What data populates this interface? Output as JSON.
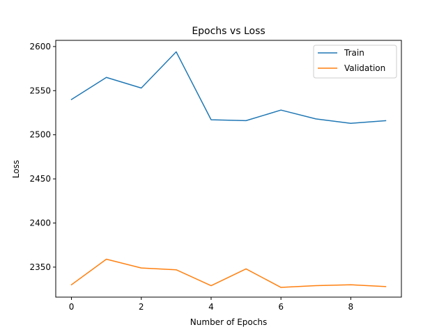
{
  "chart_data": {
    "type": "line",
    "title": "Epochs vs Loss",
    "xlabel": "Number of Epochs",
    "ylabel": "Loss",
    "xlim": [
      -0.45,
      9.45
    ],
    "ylim": [
      2316,
      2607
    ],
    "xticks": [
      0,
      2,
      4,
      6,
      8
    ],
    "yticks": [
      2350,
      2400,
      2450,
      2500,
      2550,
      2600
    ],
    "x": [
      0,
      1,
      2,
      3,
      4,
      5,
      6,
      7,
      8,
      9
    ],
    "series": [
      {
        "name": "Train",
        "color": "#1f77b4",
        "values": [
          2540,
          2565,
          2553,
          2594,
          2517,
          2516,
          2528,
          2518,
          2513,
          2516
        ]
      },
      {
        "name": "Validation",
        "color": "#ff7f0e",
        "values": [
          2330,
          2359,
          2349,
          2347,
          2329,
          2348,
          2327,
          2329,
          2330,
          2328
        ]
      }
    ],
    "grid": false,
    "legend_position": "top-right"
  }
}
